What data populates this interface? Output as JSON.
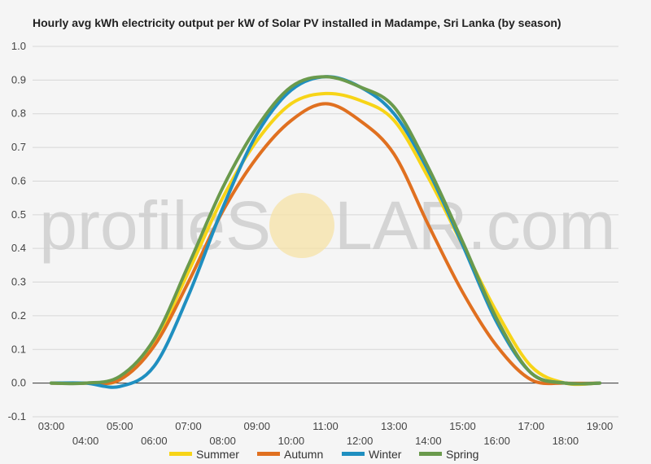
{
  "chart_data": {
    "type": "line",
    "title": "Hourly avg kWh electricity output per kW of Solar PV installed in Madampe, Sri Lanka (by season)",
    "xlabel": "",
    "ylabel": "",
    "x": [
      "03:00",
      "04:00",
      "05:00",
      "06:00",
      "07:00",
      "08:00",
      "09:00",
      "10:00",
      "11:00",
      "12:00",
      "13:00",
      "14:00",
      "15:00",
      "16:00",
      "17:00",
      "18:00",
      "19:00"
    ],
    "ylim": [
      -0.1,
      1.0
    ],
    "yticks": [
      "-0.1",
      "0.0",
      "0.1",
      "0.2",
      "0.3",
      "0.4",
      "0.5",
      "0.6",
      "0.7",
      "0.8",
      "0.9",
      "1.0"
    ],
    "grid": true,
    "legend_position": "bottom",
    "series": [
      {
        "name": "Summer",
        "color": "#f7d417",
        "values": [
          0.0,
          0.0,
          0.01,
          0.12,
          0.33,
          0.55,
          0.72,
          0.83,
          0.86,
          0.84,
          0.78,
          0.61,
          0.41,
          0.21,
          0.05,
          0.0,
          0.0
        ]
      },
      {
        "name": "Autumn",
        "color": "#e07020",
        "values": [
          0.0,
          0.0,
          0.01,
          0.11,
          0.3,
          0.51,
          0.67,
          0.78,
          0.83,
          0.78,
          0.68,
          0.47,
          0.27,
          0.11,
          0.01,
          0.0,
          0.0
        ]
      },
      {
        "name": "Winter",
        "color": "#1f8fc0",
        "values": [
          0.0,
          0.0,
          -0.01,
          0.05,
          0.26,
          0.52,
          0.74,
          0.87,
          0.91,
          0.88,
          0.8,
          0.63,
          0.41,
          0.18,
          0.03,
          0.0,
          0.0
        ]
      },
      {
        "name": "Spring",
        "color": "#6a9a4c",
        "values": [
          0.0,
          0.0,
          0.02,
          0.13,
          0.35,
          0.58,
          0.76,
          0.88,
          0.91,
          0.88,
          0.82,
          0.64,
          0.42,
          0.19,
          0.03,
          0.0,
          0.0
        ]
      }
    ]
  },
  "watermark": {
    "text_left": "profileS",
    "text_right": "LAR.com"
  }
}
